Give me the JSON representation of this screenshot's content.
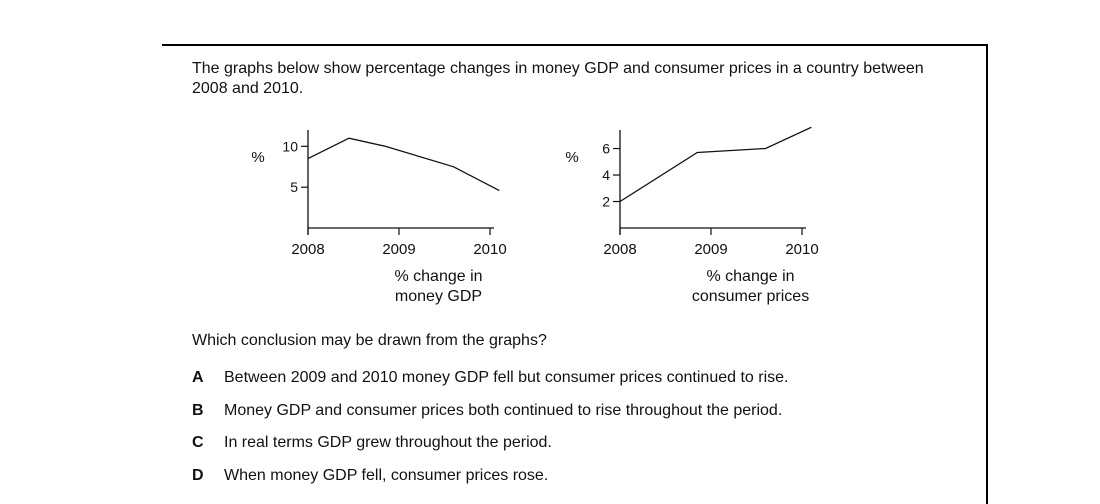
{
  "intro": "The graphs below show percentage changes in money GDP and consumer prices in a country between 2008 and 2010.",
  "question": "Which conclusion may be drawn from the graphs?",
  "options": [
    {
      "letter": "A",
      "text": "Between 2009 and 2010 money GDP fell but consumer prices continued to rise."
    },
    {
      "letter": "B",
      "text": "Money GDP and consumer prices both continued to rise throughout the period."
    },
    {
      "letter": "C",
      "text": "In real terms GDP grew throughout the period."
    },
    {
      "letter": "D",
      "text": "When money GDP fell, consumer prices rose."
    }
  ],
  "chart_data": [
    {
      "type": "line",
      "title": "",
      "xlabel": "% change in money GDP",
      "xlabel_lines": [
        "% change in",
        "money GDP"
      ],
      "ylabel": "%",
      "x_ticks": [
        "2008",
        "2009",
        "2010"
      ],
      "y_ticks": [
        5,
        10
      ],
      "xlim": [
        2008,
        2010
      ],
      "ylim": [
        0,
        12
      ],
      "series": [
        {
          "x": [
            2008,
            2008.45,
            2008.85,
            2009.6,
            2010.1
          ],
          "y": [
            8.5,
            11,
            10,
            7.5,
            4.6
          ]
        }
      ],
      "grid": false
    },
    {
      "type": "line",
      "title": "",
      "xlabel": "% change in consumer prices",
      "xlabel_lines": [
        "% change in",
        "consumer prices"
      ],
      "ylabel": "%",
      "x_ticks": [
        "2008",
        "2009",
        "2010"
      ],
      "y_ticks": [
        2,
        4,
        6
      ],
      "xlim": [
        2008,
        2010
      ],
      "ylim": [
        0,
        7
      ],
      "series": [
        {
          "x": [
            2008,
            2008.85,
            2009.6,
            2010.1
          ],
          "y": [
            2,
            5.7,
            6,
            7.6
          ]
        }
      ],
      "grid": false
    }
  ]
}
